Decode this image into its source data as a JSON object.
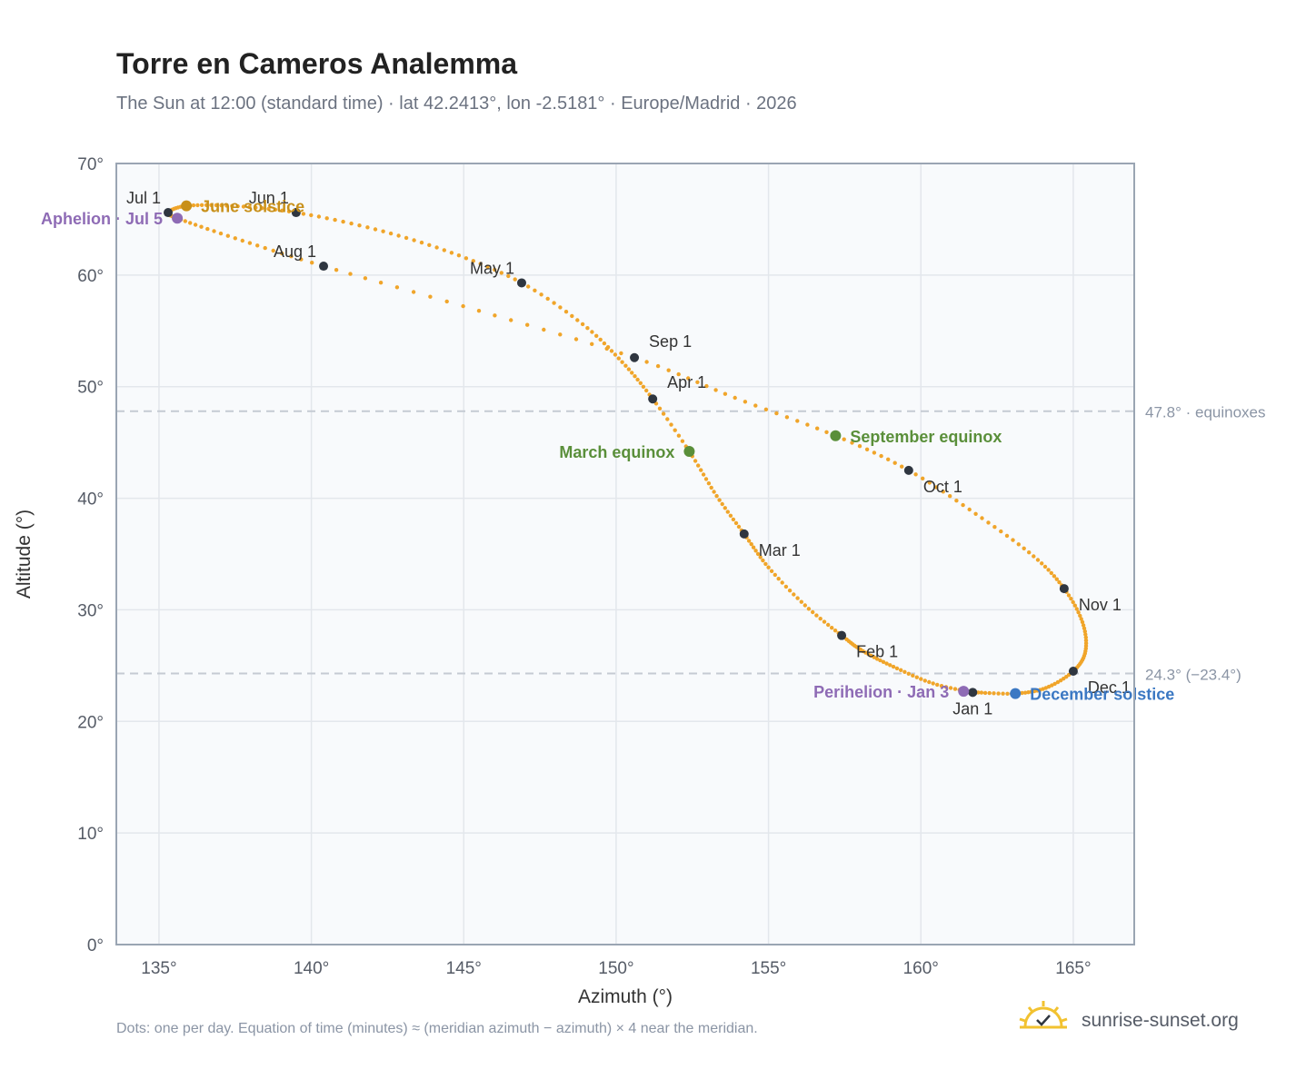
{
  "header": {
    "title": "Torre en Cameros Analemma",
    "subtitle": "The Sun at 12:00 (standard time) · lat 42.2413°, lon -2.5181° · Europe/Madrid · 2026"
  },
  "footer": {
    "note": "Dots: one per day. Equation of time (minutes) ≈ (meridian azimuth − azimuth) × 4 near the meridian.",
    "brand": "sunrise-sunset.org",
    "brand_icon": "sun-logo-icon"
  },
  "colors": {
    "curve": "#f0a52a",
    "month_dot": "#2f3640",
    "june_solstice": "#c8901a",
    "december_solstice": "#3b78c3",
    "equinox": "#5a8f3a",
    "apsis": "#8e6bb5",
    "reference_line": "#c5cbd3",
    "plot_background": "#f8fafc",
    "grid": "#e3e7ec",
    "frame": "#9aa5b3"
  },
  "chart_data": {
    "type": "scatter",
    "xlabel": "Azimuth (°)",
    "ylabel": "Altitude (°)",
    "xlim": [
      133.6,
      167.0
    ],
    "ylim": [
      0,
      70
    ],
    "xticks": [
      135,
      140,
      145,
      150,
      155,
      160,
      165
    ],
    "yticks": [
      0,
      10,
      20,
      30,
      40,
      50,
      60,
      70
    ],
    "tick_suffix": "°",
    "grid": true,
    "series": [
      {
        "points": [
          {
            "date": "Jan 1",
            "az": 161.7,
            "alt": 22.6
          },
          {
            "date": "Jan 8",
            "az": 160.4,
            "alt": 23.4
          },
          {
            "date": "Jan 16",
            "az": 159.1,
            "alt": 24.9
          },
          {
            "date": "Jan 24",
            "az": 158.1,
            "alt": 26.3
          },
          {
            "date": "Feb 1",
            "az": 157.4,
            "alt": 27.7
          },
          {
            "date": "Feb 10",
            "az": 156.2,
            "alt": 30.4
          },
          {
            "date": "Feb 20",
            "az": 155.0,
            "alt": 33.8
          },
          {
            "date": "Mar 1",
            "az": 154.2,
            "alt": 36.8
          },
          {
            "date": "Mar 10",
            "az": 153.3,
            "alt": 40.2
          },
          {
            "date": "Mar 20",
            "az": 152.4,
            "alt": 44.2
          },
          {
            "date": "Apr 1",
            "az": 151.2,
            "alt": 48.9
          },
          {
            "date": "Apr 10",
            "az": 150.2,
            "alt": 52.2
          },
          {
            "date": "Apr 20",
            "az": 148.9,
            "alt": 55.6
          },
          {
            "date": "May 1",
            "az": 146.9,
            "alt": 59.3
          },
          {
            "date": "May 11",
            "az": 144.6,
            "alt": 62.0
          },
          {
            "date": "May 21",
            "az": 142.1,
            "alt": 64.1
          },
          {
            "date": "Jun 1",
            "az": 139.5,
            "alt": 65.6
          },
          {
            "date": "Jun 11",
            "az": 137.4,
            "alt": 66.2
          },
          {
            "date": "Jun 21",
            "az": 135.9,
            "alt": 66.2
          },
          {
            "date": "Jul 1",
            "az": 135.3,
            "alt": 65.6
          },
          {
            "date": "Jul 5",
            "az": 135.6,
            "alt": 65.1
          },
          {
            "date": "Jul 16",
            "az": 137.5,
            "alt": 63.3
          },
          {
            "date": "Aug 1",
            "az": 140.4,
            "alt": 60.8
          },
          {
            "date": "Aug 16",
            "az": 145.5,
            "alt": 56.8
          },
          {
            "date": "Sep 1",
            "az": 150.6,
            "alt": 52.6
          },
          {
            "date": "Sep 12",
            "az": 153.9,
            "alt": 49.0
          },
          {
            "date": "Sep 23",
            "az": 157.2,
            "alt": 45.6
          },
          {
            "date": "Oct 1",
            "az": 159.6,
            "alt": 42.5
          },
          {
            "date": "Oct 11",
            "az": 161.8,
            "alt": 38.6
          },
          {
            "date": "Oct 21",
            "az": 163.7,
            "alt": 34.8
          },
          {
            "date": "Nov 1",
            "az": 164.7,
            "alt": 31.9
          },
          {
            "date": "Nov 11",
            "az": 165.3,
            "alt": 28.9
          },
          {
            "date": "Nov 21",
            "az": 165.4,
            "alt": 26.3
          },
          {
            "date": "Dec 1",
            "az": 165.0,
            "alt": 24.5
          },
          {
            "date": "Dec 11",
            "az": 164.1,
            "alt": 23.0
          },
          {
            "date": "Dec 21",
            "az": 163.1,
            "alt": 22.5
          },
          {
            "date": "Dec 31",
            "az": 161.8,
            "alt": 22.6
          }
        ]
      }
    ],
    "month_markers": [
      {
        "label": "Jan 1",
        "az": 161.7,
        "alt": 22.6,
        "label_pos": "below"
      },
      {
        "label": "Feb 1",
        "az": 157.4,
        "alt": 27.7,
        "label_pos": "below-right"
      },
      {
        "label": "Mar 1",
        "az": 154.2,
        "alt": 36.8,
        "label_pos": "below-right"
      },
      {
        "label": "Apr 1",
        "az": 151.2,
        "alt": 48.9,
        "label_pos": "above-right"
      },
      {
        "label": "May 1",
        "az": 146.9,
        "alt": 59.3,
        "label_pos": "above-left"
      },
      {
        "label": "Jun 1",
        "az": 139.5,
        "alt": 65.6,
        "label_pos": "above-left"
      },
      {
        "label": "Jul 1",
        "az": 135.3,
        "alt": 65.6,
        "label_pos": "above-left"
      },
      {
        "label": "Aug 1",
        "az": 140.4,
        "alt": 60.8,
        "label_pos": "above-left"
      },
      {
        "label": "Sep 1",
        "az": 150.6,
        "alt": 52.6,
        "label_pos": "above-right"
      },
      {
        "label": "Oct 1",
        "az": 159.6,
        "alt": 42.5,
        "label_pos": "below-right"
      },
      {
        "label": "Nov 1",
        "az": 164.7,
        "alt": 31.9,
        "label_pos": "below-right"
      },
      {
        "label": "Dec 1",
        "az": 165.0,
        "alt": 24.5,
        "label_pos": "below-right"
      }
    ],
    "events": [
      {
        "label": "June solstice",
        "az": 135.9,
        "alt": 66.2,
        "color": "#c8901a",
        "label_pos": "right"
      },
      {
        "label": "Aphelion · Jul 5",
        "az": 135.6,
        "alt": 65.1,
        "color": "#8e6bb5",
        "label_pos": "left"
      },
      {
        "label": "March equinox",
        "az": 152.4,
        "alt": 44.2,
        "color": "#5a8f3a",
        "label_pos": "left"
      },
      {
        "label": "September equinox",
        "az": 157.2,
        "alt": 45.6,
        "color": "#5a8f3a",
        "label_pos": "right"
      },
      {
        "label": "Perihelion · Jan 3",
        "az": 161.4,
        "alt": 22.7,
        "color": "#8e6bb5",
        "label_pos": "left"
      },
      {
        "label": "December solstice",
        "az": 163.1,
        "alt": 22.5,
        "color": "#3b78c3",
        "label_pos": "right"
      }
    ],
    "reference_lines": [
      {
        "alt": 47.8,
        "label": "47.8° · equinoxes"
      },
      {
        "alt": 24.3,
        "label": "24.3° (−23.4°)"
      }
    ]
  }
}
